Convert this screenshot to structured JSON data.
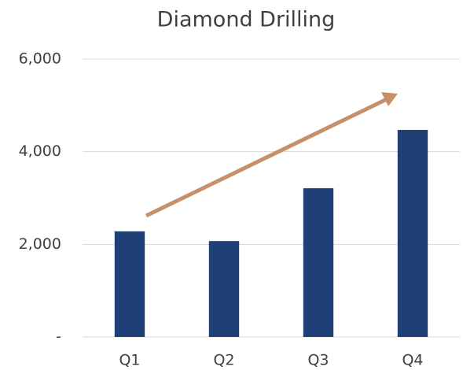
{
  "chart_data": {
    "type": "bar",
    "title": "Diamond Drilling",
    "categories": [
      "Q1",
      "Q2",
      "Q3",
      "Q4"
    ],
    "values": [
      2280,
      2070,
      3210,
      4470
    ],
    "color": "#1f3f77",
    "ylim": [
      0,
      6000
    ],
    "yticks": [
      {
        "value": 0,
        "label": "-"
      },
      {
        "value": 2000,
        "label": "2,000"
      },
      {
        "value": 4000,
        "label": "4,000"
      },
      {
        "value": 6000,
        "label": "6,000"
      }
    ],
    "grid": true
  }
}
